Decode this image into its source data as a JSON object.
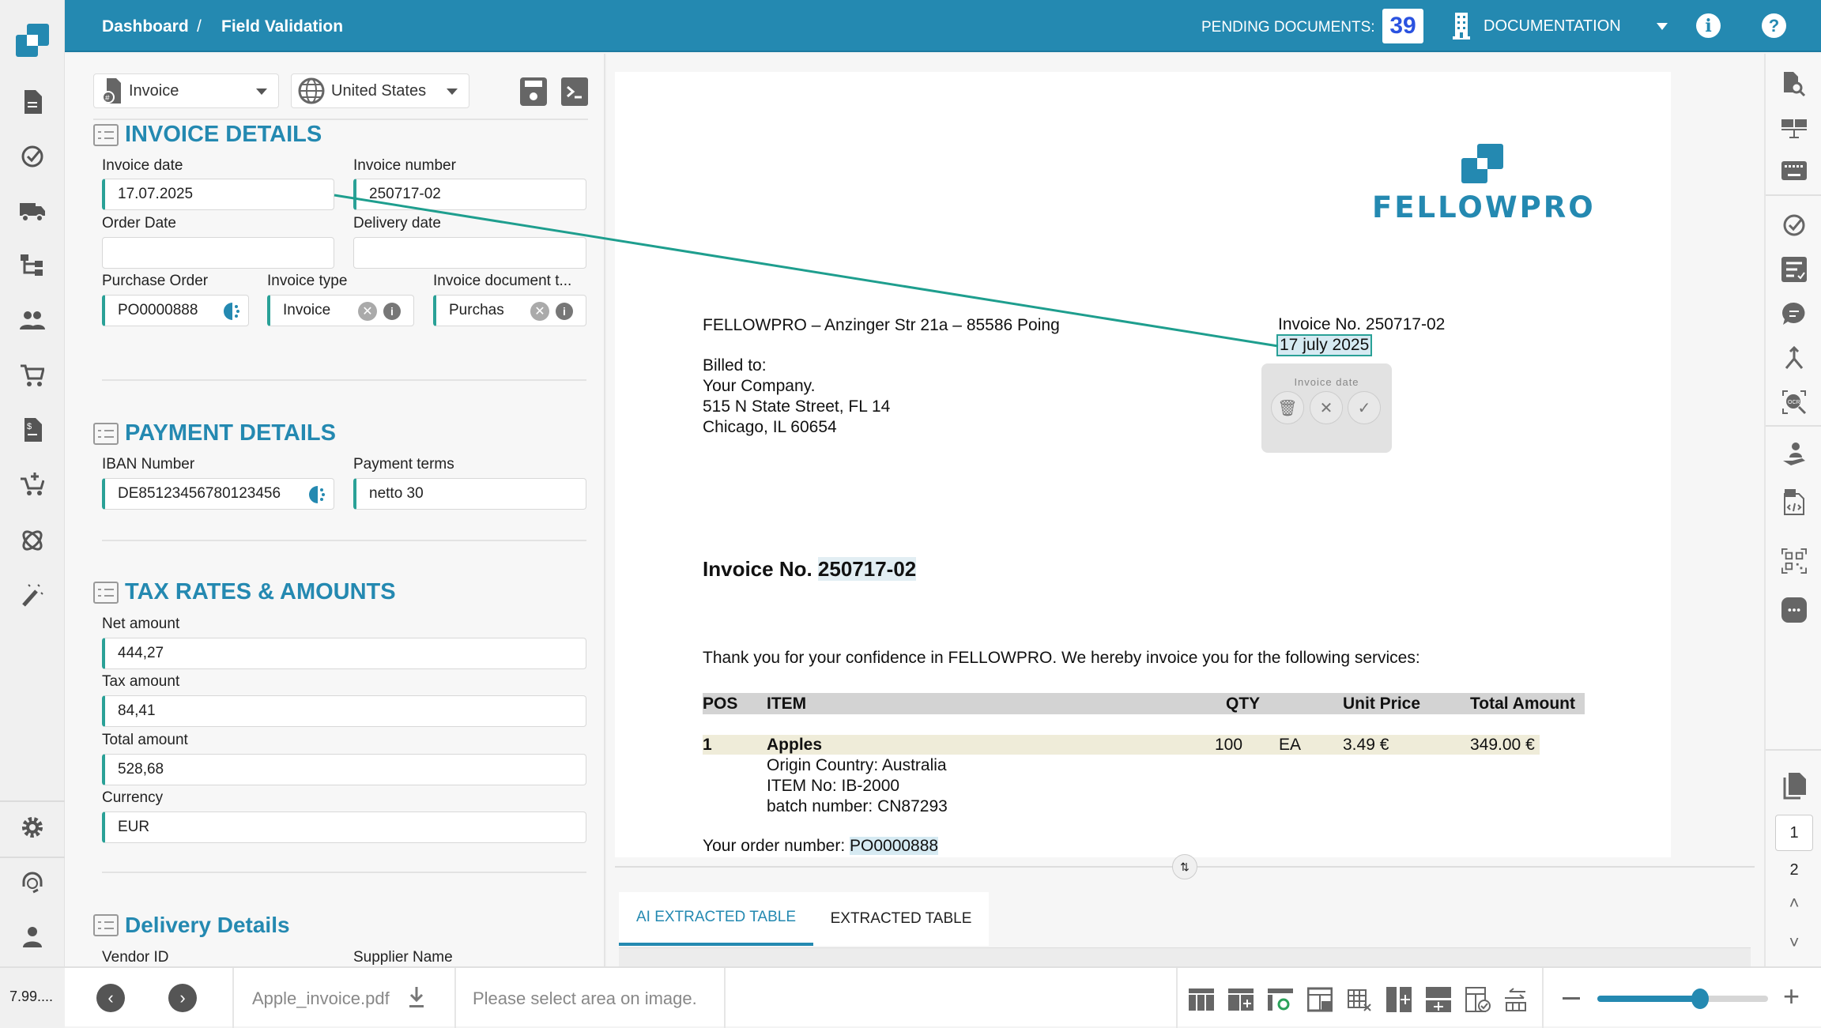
{
  "colors": {
    "brand": "#2489b1",
    "accent_teal": "#2aa197",
    "badge_text": "#2a52e0"
  },
  "header": {
    "breadcrumb": [
      "Dashboard",
      "/",
      "Field Validation"
    ],
    "pending_label": "PENDING DOCUMENTS:",
    "pending_count": "39",
    "workspace": "DOCUMENTATION"
  },
  "sidebar": {
    "icons": [
      "document-icon",
      "check-circle-icon",
      "truck-icon",
      "hierarchy-icon",
      "users-icon",
      "cart-icon",
      "invoice-dollar-icon",
      "cart-plus-icon",
      "orbit-icon",
      "magic-wand-icon",
      "gear-icon",
      "headset-icon",
      "user-icon"
    ]
  },
  "toolbar": {
    "doc_type": "Invoice",
    "country": "United States"
  },
  "sections": {
    "invoice": {
      "title": "INVOICE DETAILS",
      "invoice_date_label": "Invoice date",
      "invoice_date": "17.07.2025",
      "invoice_number_label": "Invoice number",
      "invoice_number": "250717-02",
      "order_date_label": "Order Date",
      "order_date": "",
      "delivery_date_label": "Delivery date",
      "delivery_date": "",
      "po_label": "Purchase Order",
      "po": "PO0000888",
      "type_label": "Invoice type",
      "type": "Invoice",
      "doc_type_label": "Invoice document t...",
      "doc_type": "Purchas"
    },
    "payment": {
      "title": "PAYMENT DETAILS",
      "iban_label": "IBAN Number",
      "iban": "DE85123456780123456",
      "terms_label": "Payment terms",
      "terms": "netto 30"
    },
    "tax": {
      "title": "TAX RATES & AMOUNTS",
      "net_label": "Net amount",
      "net": "444,27",
      "tax_label": "Tax amount",
      "tax": "84,41",
      "total_label": "Total amount",
      "total": "528,68",
      "currency_label": "Currency",
      "currency": "EUR"
    },
    "delivery": {
      "title": "Delivery Details",
      "vendor_label": "Vendor ID",
      "supplier_label": "Supplier Name"
    }
  },
  "document": {
    "logo_text": "FELLOWPRO",
    "sender": "FELLOWPRO – Anzinger Str 21a – 85586 Poing",
    "billed": [
      "Billed to:",
      "Your Company.",
      "515 N State Street, FL 14",
      "Chicago, IL 60654"
    ],
    "inv_no": "Invoice No. 250717-02",
    "inv_date": "17 july 2025",
    "popup_title": "Invoice date",
    "heading_prefix": "Invoice No. ",
    "heading_number": "250717-02",
    "thanks": "Thank you for your confidence in FELLOWPRO. We hereby invoice you for the following services:",
    "table_headers": [
      "POS",
      "ITEM",
      "QTY",
      "Unit Price",
      "Total Amount"
    ],
    "row": {
      "pos": "1",
      "item": "Apples",
      "qty": "100",
      "unit": "EA",
      "price": "3.49 €",
      "total": "349.00 €"
    },
    "details": [
      "Origin Country: Australia",
      "ITEM No: IB-2000",
      "batch number: CN87293"
    ],
    "order_prefix": "Your order number: ",
    "order_number": "PO0000888"
  },
  "tabs": [
    {
      "label": "AI EXTRACTED TABLE",
      "active": true
    },
    {
      "label": "EXTRACTED TABLE",
      "active": false
    }
  ],
  "pager": {
    "current": "1",
    "next": "2"
  },
  "bottom": {
    "version": "7.99....",
    "filename": "Apple_invoice.pdf",
    "status": "Please select area on image.",
    "zoom_level": 0.6
  }
}
